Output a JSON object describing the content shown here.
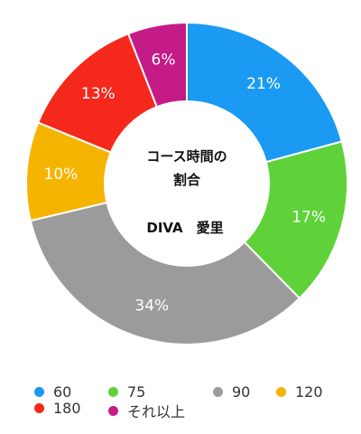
{
  "chart_data": {
    "type": "pie",
    "center_title_lines": [
      "コース時間の",
      "割合"
    ],
    "center_subtitle": "DIVA　愛里",
    "slices": [
      {
        "label": "60",
        "value": 21,
        "color": "#1a9af3",
        "display": "21%"
      },
      {
        "label": "75",
        "value": 17,
        "color": "#5fd23a",
        "display": "17%"
      },
      {
        "label": "90",
        "value": 34,
        "color": "#9b9b9b",
        "display": "34%"
      },
      {
        "label": "120",
        "value": 10,
        "color": "#f5b400",
        "display": "10%"
      },
      {
        "label": "180",
        "value": 13,
        "color": "#f4281b",
        "display": "13%"
      },
      {
        "label": "それ以上",
        "value": 6,
        "color": "#c51b86",
        "display": "6%"
      }
    ]
  }
}
